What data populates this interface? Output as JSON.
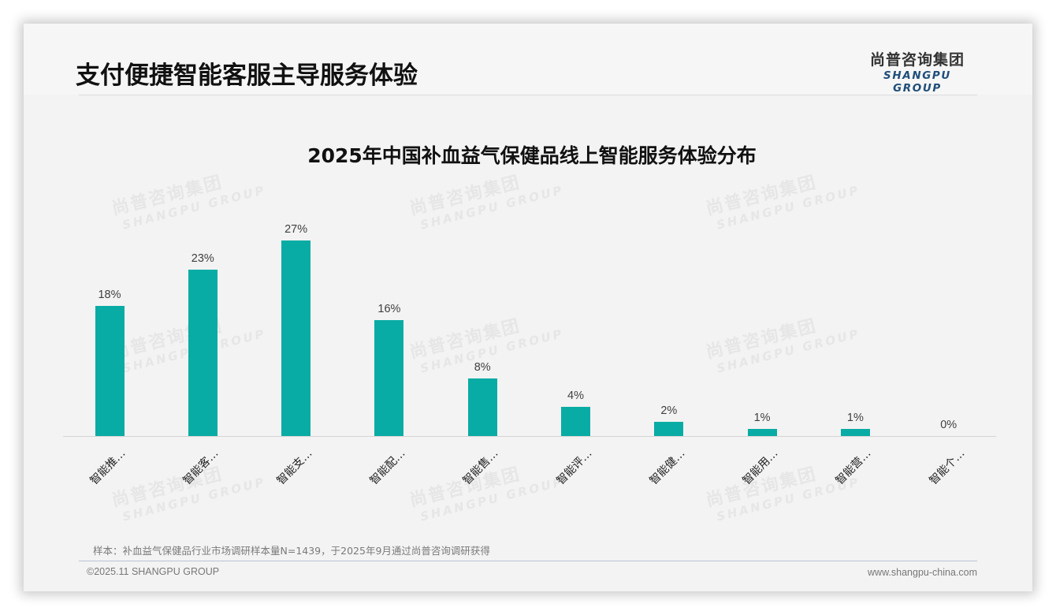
{
  "page": {
    "title": "支付便捷智能客服主导服务体验",
    "logo": {
      "cn": "尚普咨询集团",
      "en": "SHANGPU GROUP"
    },
    "watermark": {
      "cn": "尚普咨询集团",
      "en": "SHANGPU GROUP"
    },
    "note": "样本：补血益气保健品行业市场调研样本量N=1439，于2025年9月通过尚普咨询调研获得",
    "footer": {
      "copyright": "©2025.11 SHANGPU GROUP",
      "website": "www.shangpu-china.com"
    }
  },
  "colors": {
    "bar": "#09aca4",
    "title": "#111111",
    "logo_en": "#1f4e79"
  },
  "chart_data": {
    "type": "bar",
    "title": "2025年中国补血益气保健品线上智能服务体验分布",
    "categories": [
      "智能推…",
      "智能客…",
      "智能支…",
      "智能配…",
      "智能售…",
      "智能评…",
      "智能健…",
      "智能用…",
      "智能营…",
      "智能个…"
    ],
    "values": [
      18,
      23,
      27,
      16,
      8,
      4,
      2,
      1,
      1,
      0
    ],
    "value_labels": [
      "18%",
      "23%",
      "27%",
      "16%",
      "8%",
      "4%",
      "2%",
      "1%",
      "1%",
      "0%"
    ],
    "xlabel": "",
    "ylabel": "",
    "ylim": [
      0,
      27
    ],
    "grid": false,
    "legend": null,
    "unit": "%"
  }
}
